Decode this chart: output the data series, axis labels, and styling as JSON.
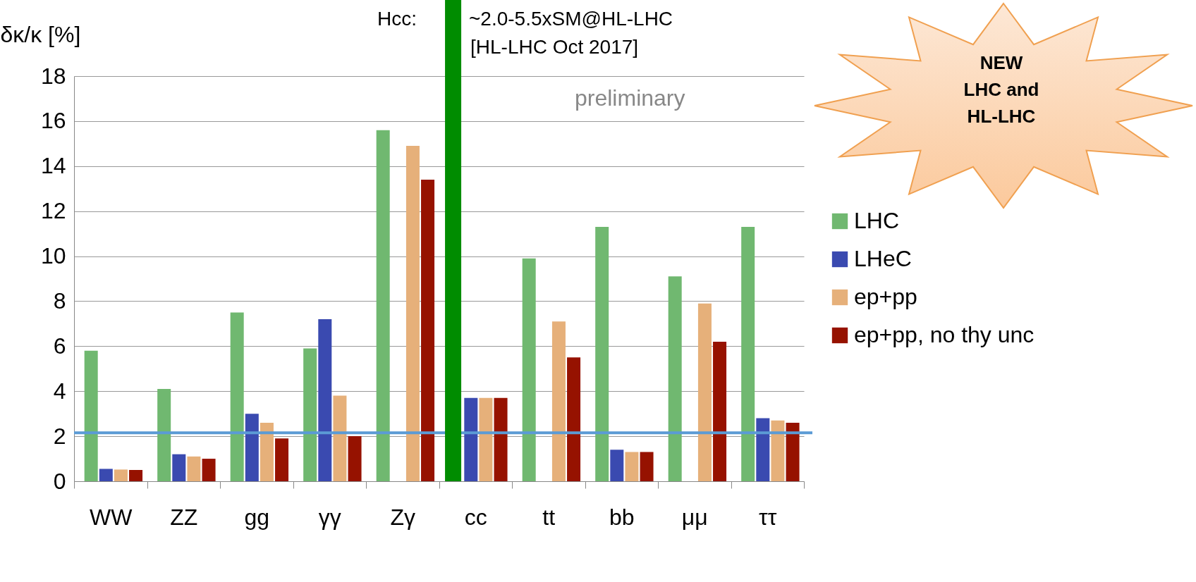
{
  "chart_data": {
    "type": "bar",
    "ylabel": "δκ/κ [%]",
    "categories": [
      "WW",
      "ZZ",
      "gg",
      "γγ",
      "Zγ",
      "cc",
      "tt",
      "bb",
      "μμ",
      "ττ"
    ],
    "series": [
      {
        "name": "LHC",
        "color": "#70b870",
        "values": [
          5.8,
          4.1,
          7.5,
          5.9,
          15.6,
          null,
          9.9,
          11.3,
          9.1,
          11.3
        ]
      },
      {
        "name": "LHeC",
        "color": "#3a4ab0",
        "values": [
          0.55,
          1.2,
          3.0,
          7.2,
          null,
          3.7,
          null,
          1.4,
          null,
          2.8
        ]
      },
      {
        "name": "ep+pp",
        "color": "#e6b07a",
        "values": [
          0.52,
          1.1,
          2.6,
          3.8,
          14.9,
          3.7,
          7.1,
          1.3,
          7.9,
          2.7
        ]
      },
      {
        "name": "ep+pp, no thy unc",
        "color": "#961200",
        "values": [
          0.5,
          1.0,
          1.9,
          2.0,
          13.4,
          3.7,
          5.5,
          1.3,
          6.2,
          2.6
        ]
      }
    ],
    "ylim": [
      0,
      18
    ],
    "yticks": [
      0,
      2,
      4,
      6,
      8,
      10,
      12,
      14,
      16,
      18
    ],
    "grid": "y",
    "legend": "right",
    "ref_lines": [
      {
        "axis": "y",
        "value": 2.15,
        "color": "#5b9bd5"
      },
      {
        "axis": "x",
        "value": "cc",
        "color": "#008c00"
      }
    ],
    "annotations": [
      "Hcc:",
      "~2.0-5.5xSM@HL-LHC",
      "[HL-LHC Oct 2017]",
      "preliminary",
      "NEW LHC and HL-LHC"
    ]
  }
}
